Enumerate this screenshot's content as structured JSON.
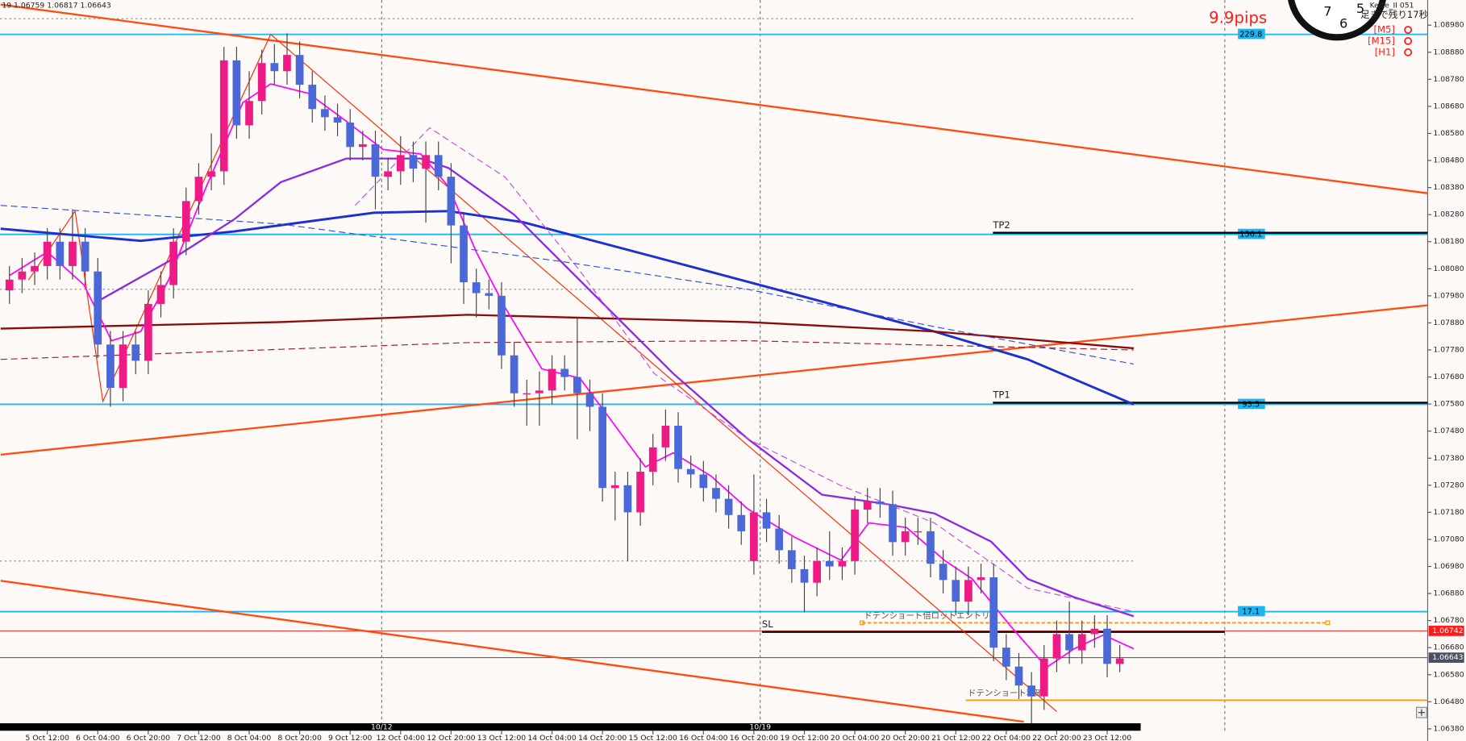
{
  "header": {
    "quote": "19 1.06759 1.06817 1.06643",
    "spread": "9.9pips",
    "timer": "足まで残り17秒",
    "indicator": "Kette_II 051",
    "clock_numerals": [
      "7",
      "6",
      "5"
    ],
    "alerts": [
      "[M5]",
      "[M15]",
      "[H1]"
    ]
  },
  "chart_data": {
    "type": "candlestick",
    "xlim": [
      -0.75,
      112.4
    ],
    "ylim": [
      1.06373,
      1.09073
    ],
    "bull_color": "#ee1a85",
    "bear_color": "#4a68d8",
    "categories": [
      null,
      null,
      null,
      "5 Oct 12:00",
      null,
      null,
      null,
      "6 Oct 04:00",
      null,
      null,
      null,
      "6 Oct 20:00",
      null,
      null,
      null,
      "7 Oct 12:00",
      null,
      null,
      null,
      "8 Oct 04:00",
      null,
      null,
      null,
      "8 Oct 20:00",
      null,
      null,
      null,
      "9 Oct 12:00",
      null,
      null,
      null,
      "12 Oct 04:00",
      null,
      null,
      null,
      "12 Oct 20:00",
      null,
      null,
      null,
      "13 Oct 12:00",
      null,
      null,
      null,
      "14 Oct 04:00",
      null,
      null,
      null,
      "14 Oct 20:00",
      null,
      null,
      null,
      "15 Oct 12:00",
      null,
      null,
      null,
      "16 Oct 04:00",
      null,
      null,
      null,
      "16 Oct 20:00",
      null,
      null,
      null,
      "19 Oct 12:00",
      null,
      null,
      null,
      "20 Oct 04:00",
      null,
      null,
      null,
      "20 Oct 20:00",
      null,
      null,
      null,
      "21 Oct 12:00",
      null,
      null,
      null,
      "22 Oct 04:00",
      null,
      null,
      null,
      "22 Oct 20:00",
      null,
      null,
      null,
      "23 Oct 12:00",
      null
    ],
    "open": [
      1.08,
      1.0804,
      1.0807,
      1.0809,
      1.0818,
      1.0809,
      1.0818,
      1.0807,
      1.078,
      1.0764,
      1.078,
      1.0774,
      1.0795,
      1.0802,
      1.0818,
      1.0833,
      1.0842,
      1.0844,
      1.0885,
      1.0861,
      1.087,
      1.0884,
      1.0881,
      1.0887,
      1.0876,
      1.0867,
      1.0864,
      1.0862,
      1.0853,
      1.0854,
      1.0842,
      1.0844,
      1.085,
      1.0845,
      1.085,
      1.0842,
      1.0824,
      1.0803,
      1.0799,
      1.0798,
      1.0776,
      1.0762,
      1.0762,
      1.0763,
      1.0771,
      1.0768,
      1.0762,
      1.0757,
      1.0727,
      1.0728,
      1.0718,
      1.0733,
      1.0742,
      1.075,
      1.0734,
      1.0732,
      1.0727,
      1.0723,
      1.0717,
      1.07,
      1.0718,
      1.0712,
      1.0704,
      1.0697,
      1.0692,
      1.07,
      1.0698,
      1.07,
      1.0719,
      1.0722,
      1.0721,
      1.0707,
      1.0711,
      1.0711,
      1.0699,
      1.0693,
      1.0685,
      1.0693,
      1.0694,
      1.0668,
      1.0661,
      1.0654,
      1.065,
      1.0664,
      1.0673,
      1.0667,
      1.0673,
      1.0675,
      1.0662
    ],
    "high": [
      1.0809,
      1.0812,
      1.0814,
      1.0823,
      1.0823,
      1.083,
      1.0823,
      1.0812,
      1.0785,
      1.0785,
      1.0785,
      1.08,
      1.0807,
      1.0823,
      1.0838,
      1.0847,
      1.0858,
      1.089,
      1.089,
      1.0881,
      1.0889,
      1.0891,
      1.0895,
      1.0892,
      1.0881,
      1.0872,
      1.0869,
      1.0867,
      1.0859,
      1.0859,
      1.0849,
      1.0857,
      1.0855,
      1.0855,
      1.0855,
      1.0847,
      1.0829,
      1.0808,
      1.0804,
      1.0803,
      1.0781,
      1.0767,
      1.077,
      1.0776,
      1.0776,
      1.079,
      1.0767,
      1.0762,
      1.0733,
      1.0733,
      1.0738,
      1.0747,
      1.0756,
      1.0755,
      1.0739,
      1.0737,
      1.0732,
      1.0728,
      1.0722,
      1.0732,
      1.0723,
      1.0717,
      1.0709,
      1.0702,
      1.0705,
      1.0711,
      1.0705,
      1.0724,
      1.0727,
      1.0727,
      1.0726,
      1.0716,
      1.0716,
      1.0716,
      1.0704,
      1.0698,
      1.0698,
      1.0699,
      1.0699,
      1.0673,
      1.0666,
      1.0659,
      1.0669,
      1.0678,
      1.0685,
      1.0678,
      1.068,
      1.068,
      1.0669
    ],
    "low": [
      1.0795,
      1.0799,
      1.0802,
      1.0804,
      1.0804,
      1.0804,
      1.0802,
      1.0775,
      1.0757,
      1.0759,
      1.0769,
      1.0769,
      1.079,
      1.0797,
      1.0813,
      1.0828,
      1.0837,
      1.0839,
      1.0856,
      1.0856,
      1.0865,
      1.0876,
      1.0876,
      1.0871,
      1.0862,
      1.0859,
      1.0857,
      1.0848,
      1.0848,
      1.083,
      1.0837,
      1.0839,
      1.084,
      1.0825,
      1.0837,
      1.081,
      1.0795,
      1.079,
      1.0793,
      1.0771,
      1.0757,
      1.075,
      1.075,
      1.0758,
      1.0763,
      1.0745,
      1.0748,
      1.0722,
      1.0715,
      1.07,
      1.0713,
      1.0728,
      1.0737,
      1.0729,
      1.0727,
      1.0722,
      1.0718,
      1.0712,
      1.0706,
      1.0695,
      1.0707,
      1.0699,
      1.0692,
      1.0681,
      1.0687,
      1.0693,
      1.0693,
      1.0695,
      1.0714,
      1.0716,
      1.0702,
      1.0702,
      1.0706,
      1.0694,
      1.0688,
      1.068,
      1.068,
      1.0688,
      1.0663,
      1.0656,
      1.0649,
      1.064,
      1.0645,
      1.0659,
      1.0662,
      1.0662,
      1.0668,
      1.0657,
      1.0659
    ],
    "close": [
      1.0804,
      1.0807,
      1.0809,
      1.0818,
      1.0809,
      1.0818,
      1.0807,
      1.078,
      1.0764,
      1.078,
      1.0774,
      1.0795,
      1.0802,
      1.0818,
      1.0833,
      1.0842,
      1.0844,
      1.0885,
      1.0861,
      1.087,
      1.0884,
      1.0881,
      1.0887,
      1.0876,
      1.0867,
      1.0864,
      1.0862,
      1.0853,
      1.0854,
      1.0842,
      1.0844,
      1.085,
      1.0845,
      1.085,
      1.0842,
      1.0824,
      1.0803,
      1.0799,
      1.0798,
      1.0776,
      1.0762,
      1.0762,
      1.0763,
      1.0771,
      1.0768,
      1.0762,
      1.0757,
      1.0727,
      1.0728,
      1.0718,
      1.0733,
      1.0742,
      1.075,
      1.0734,
      1.0732,
      1.0727,
      1.0723,
      1.0717,
      1.0711,
      1.0718,
      1.0712,
      1.0704,
      1.0697,
      1.0692,
      1.07,
      1.0698,
      1.07,
      1.0719,
      1.0722,
      1.0721,
      1.0707,
      1.0711,
      1.0711,
      1.0699,
      1.0693,
      1.0685,
      1.0693,
      1.0694,
      1.0668,
      1.0661,
      1.0654,
      1.065,
      1.0664,
      1.0673,
      1.0667,
      1.0673,
      1.0675,
      1.0662,
      1.0664
    ],
    "yticks": [
      {
        "value": 1.0898,
        "label": "1.08980"
      },
      {
        "value": 1.0888,
        "label": "1.08880"
      },
      {
        "value": 1.0878,
        "label": "1.08780"
      },
      {
        "value": 1.0868,
        "label": "1.08680"
      },
      {
        "value": 1.0858,
        "label": "1.08580"
      },
      {
        "value": 1.0848,
        "label": "1.08480"
      },
      {
        "value": 1.0838,
        "label": "1.08380"
      },
      {
        "value": 1.0828,
        "label": "1.08280"
      },
      {
        "value": 1.0818,
        "label": "1.08180"
      },
      {
        "value": 1.0808,
        "label": "1.08080"
      },
      {
        "value": 1.0798,
        "label": "1.07980"
      },
      {
        "value": 1.0788,
        "label": "1.07880"
      },
      {
        "value": 1.0778,
        "label": "1.07780"
      },
      {
        "value": 1.0768,
        "label": "1.07680"
      },
      {
        "value": 1.0758,
        "label": "1.07580"
      },
      {
        "value": 1.0748,
        "label": "1.07480"
      },
      {
        "value": 1.0738,
        "label": "1.07380"
      },
      {
        "value": 1.0728,
        "label": "1.07280"
      },
      {
        "value": 1.0718,
        "label": "1.07180"
      },
      {
        "value": 1.0708,
        "label": "1.07080"
      },
      {
        "value": 1.0698,
        "label": "1.06980"
      },
      {
        "value": 1.0688,
        "label": "1.06880"
      },
      {
        "value": 1.0678,
        "label": "1.06780"
      },
      {
        "value": 1.0668,
        "label": "1.06680"
      },
      {
        "value": 1.0658,
        "label": "1.06580"
      },
      {
        "value": 1.0648,
        "label": "1.06480"
      },
      {
        "value": 1.0638,
        "label": "1.06380"
      }
    ],
    "week_starts": [
      {
        "index": 30,
        "label": "10/12"
      },
      {
        "index": 60,
        "label": "10/19"
      }
    ],
    "dotted_levels": [
      1.09004,
      1.08004,
      1.07
    ],
    "indicators": [
      {
        "color": "#1c2fd0",
        "width": 2.5,
        "dash": false,
        "x": [
          -0.7,
          10.4,
          17.8,
          28.9,
          34.8,
          40.7,
          51.1,
          62.2,
          73.3,
          80.7,
          89.1
        ],
        "values": [
          1.08228,
          1.08183,
          1.08218,
          1.08287,
          1.08293,
          1.08252,
          1.08124,
          1.07986,
          1.07848,
          1.07745,
          1.07579
        ]
      },
      {
        "color": "#8b0a0a",
        "width": 2,
        "dash": false,
        "x": [
          -0.7,
          21.5,
          36.3,
          58.5,
          73.3,
          89.1
        ],
        "values": [
          1.07859,
          1.07883,
          1.0791,
          1.07883,
          1.07848,
          1.07786
        ]
      },
      {
        "color": "#8a2be2",
        "width": 2,
        "dash": false,
        "x": [
          6.7,
          12.6,
          17.8,
          21.5,
          26.7,
          32.6,
          34.8,
          40,
          47.4,
          52.6,
          58.5,
          64.4,
          69.6,
          73.3,
          77.8,
          80.7,
          84.4,
          89.1
        ],
        "values": [
          1.07952,
          1.08107,
          1.08262,
          1.084,
          1.08487,
          1.08487,
          1.08452,
          1.0828,
          1.07935,
          1.07693,
          1.07452,
          1.07245,
          1.0721,
          1.07176,
          1.07072,
          1.06934,
          1.06866,
          1.06796
        ]
      },
      {
        "color": "#ff00ff",
        "width": 1.5,
        "dash": false,
        "x": [
          0,
          3,
          5.9,
          8.1,
          10.4,
          12.6,
          15.6,
          18.5,
          20.7,
          23.7,
          26.7,
          29.6,
          32.6,
          34.8,
          37,
          39.3,
          42.2,
          45.2,
          47.4,
          50.4,
          52.6,
          55.6,
          58.5,
          62.2,
          65.9,
          68.1,
          71.1,
          74.1,
          76.3,
          79.3,
          82.2,
          84.4,
          86.7,
          89.1
        ],
        "values": [
          1.08055,
          1.08142,
          1.08021,
          1.07814,
          1.07848,
          1.08038,
          1.08383,
          1.08694,
          1.08763,
          1.08728,
          1.08625,
          1.08521,
          1.08504,
          1.08383,
          1.08142,
          1.07935,
          1.0771,
          1.07676,
          1.07538,
          1.07348,
          1.074,
          1.07314,
          1.07193,
          1.07089,
          1.07003,
          1.07141,
          1.07124,
          1.07003,
          1.06934,
          1.06762,
          1.06607,
          1.06676,
          1.06727,
          1.06676
        ]
      },
      {
        "color": "#3050e0",
        "width": 1,
        "dash": true,
        "x": [
          -0.7,
          21.5,
          43.7,
          58.5,
          73.3,
          89.1
        ],
        "values": [
          1.08314,
          1.08245,
          1.08107,
          1.08004,
          1.07866,
          1.07728
        ]
      },
      {
        "color": "#a02020",
        "width": 1,
        "dash": true,
        "x": [
          -0.7,
          36.3,
          58.5,
          89.1
        ],
        "values": [
          1.07745,
          1.07807,
          1.07814,
          1.0778
        ]
      },
      {
        "color": "#c050e0",
        "width": 1,
        "dash": true,
        "x": [
          27.4,
          33.3,
          39.3,
          45.2,
          51.1,
          58.5,
          65.9,
          73.3,
          80.7,
          89.1
        ],
        "values": [
          1.08314,
          1.08601,
          1.08418,
          1.08073,
          1.07693,
          1.07452,
          1.07279,
          1.07141,
          1.069,
          1.06813
        ]
      }
    ],
    "trendlines": [
      {
        "color": "#ff4a10",
        "width": 2,
        "x": [
          -0.7,
          112.4
        ],
        "values": [
          1.09056,
          1.08359
        ]
      },
      {
        "color": "#ff4a10",
        "width": 2,
        "x": [
          -0.7,
          112.4
        ],
        "values": [
          1.07393,
          1.07945
        ]
      },
      {
        "color": "#ff4a10",
        "width": 2,
        "x": [
          -0.7,
          80.4
        ],
        "values": [
          1.06927,
          1.06406
        ]
      },
      {
        "color": "#ff2a00",
        "width": 1,
        "x": [
          1.5,
          5.2,
          7.4,
          20.7,
          83
        ],
        "values": [
          1.08038,
          1.08293,
          1.0759,
          1.08946,
          1.06444
        ]
      }
    ],
    "levels": [
      {
        "price": 1.08946,
        "value_label": 229.8
      },
      {
        "price": 1.08207,
        "value_label": 156.1
      },
      {
        "price": 1.07579,
        "value_label": 93.5
      },
      {
        "price": 1.06813,
        "value_label": 17.1
      }
    ],
    "level_color": "#1eb4ef",
    "targets": [
      {
        "label": "TP2",
        "price": 1.08213
      },
      {
        "label": "TP1",
        "price": 1.07585
      },
      {
        "label": "SL",
        "price": 1.06738
      }
    ],
    "orders": [
      {
        "label": "ドテンショート倍ロットエントリ",
        "price": 1.06772
      },
      {
        "label": "ドテンショート利確",
        "price": 1.06486
      }
    ],
    "price_tags": [
      {
        "value": 1.06742,
        "color": "#ff1a1a"
      },
      {
        "value": 1.06643,
        "color": "#4a5060"
      }
    ]
  }
}
